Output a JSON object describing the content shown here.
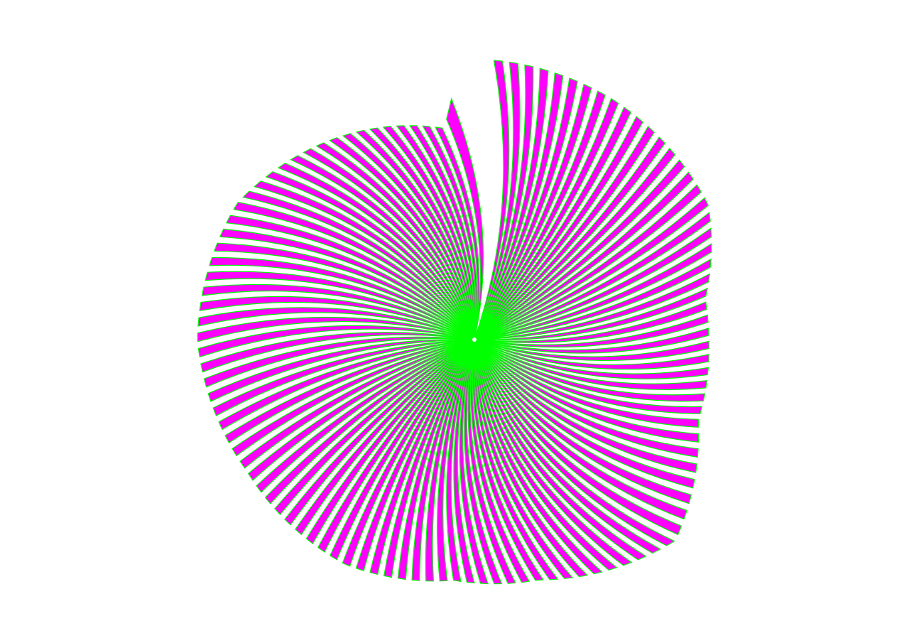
{
  "artwork": {
    "fill_color": "#ff00ff",
    "stroke_color": "#00ff00",
    "background": "#ffffff"
  }
}
